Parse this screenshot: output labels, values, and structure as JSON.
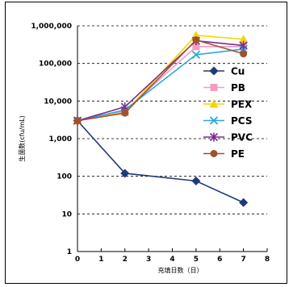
{
  "chart_data": {
    "type": "line",
    "title": "",
    "xlabel": "充填日数（日）",
    "ylabel": "生菌数(cfu/mL)",
    "x_ticks": [
      0,
      1,
      2,
      3,
      4,
      5,
      6,
      7,
      8
    ],
    "xlim": [
      0,
      8
    ],
    "y_scale": "log",
    "ylim": [
      1,
      1000000
    ],
    "y_ticks": [
      1,
      10,
      100,
      1000,
      10000,
      100000,
      1000000
    ],
    "y_tick_labels": [
      "1",
      "10",
      "100",
      "1,000",
      "10,000",
      "100,000",
      "1,000,000"
    ],
    "grid": "horizontal dashed",
    "legend_position": "right",
    "series": [
      {
        "name": "Cu",
        "color": "#1f3a7a",
        "marker": "diamond",
        "x": [
          0,
          2,
          5,
          7
        ],
        "y": [
          3000,
          120,
          75,
          20
        ]
      },
      {
        "name": "PB",
        "color": "#f19ec2",
        "marker": "square",
        "x": [
          0,
          2,
          5,
          7
        ],
        "y": [
          3000,
          5500,
          280000,
          280000
        ]
      },
      {
        "name": "PEX",
        "color": "#f5d400",
        "marker": "triangle",
        "x": [
          0,
          2,
          5,
          7
        ],
        "y": [
          3000,
          5000,
          560000,
          440000
        ]
      },
      {
        "name": "PCS",
        "color": "#29a8e0",
        "marker": "x",
        "x": [
          0,
          2,
          5,
          7
        ],
        "y": [
          3000,
          5800,
          170000,
          240000
        ]
      },
      {
        "name": "PVC",
        "color": "#7b2d8e",
        "marker": "star",
        "x": [
          0,
          2,
          5,
          7
        ],
        "y": [
          3000,
          7000,
          400000,
          300000
        ]
      },
      {
        "name": "PE",
        "color": "#a0522d",
        "marker": "circle",
        "x": [
          0,
          2,
          5,
          7
        ],
        "y": [
          3000,
          4800,
          420000,
          180000
        ]
      }
    ]
  }
}
